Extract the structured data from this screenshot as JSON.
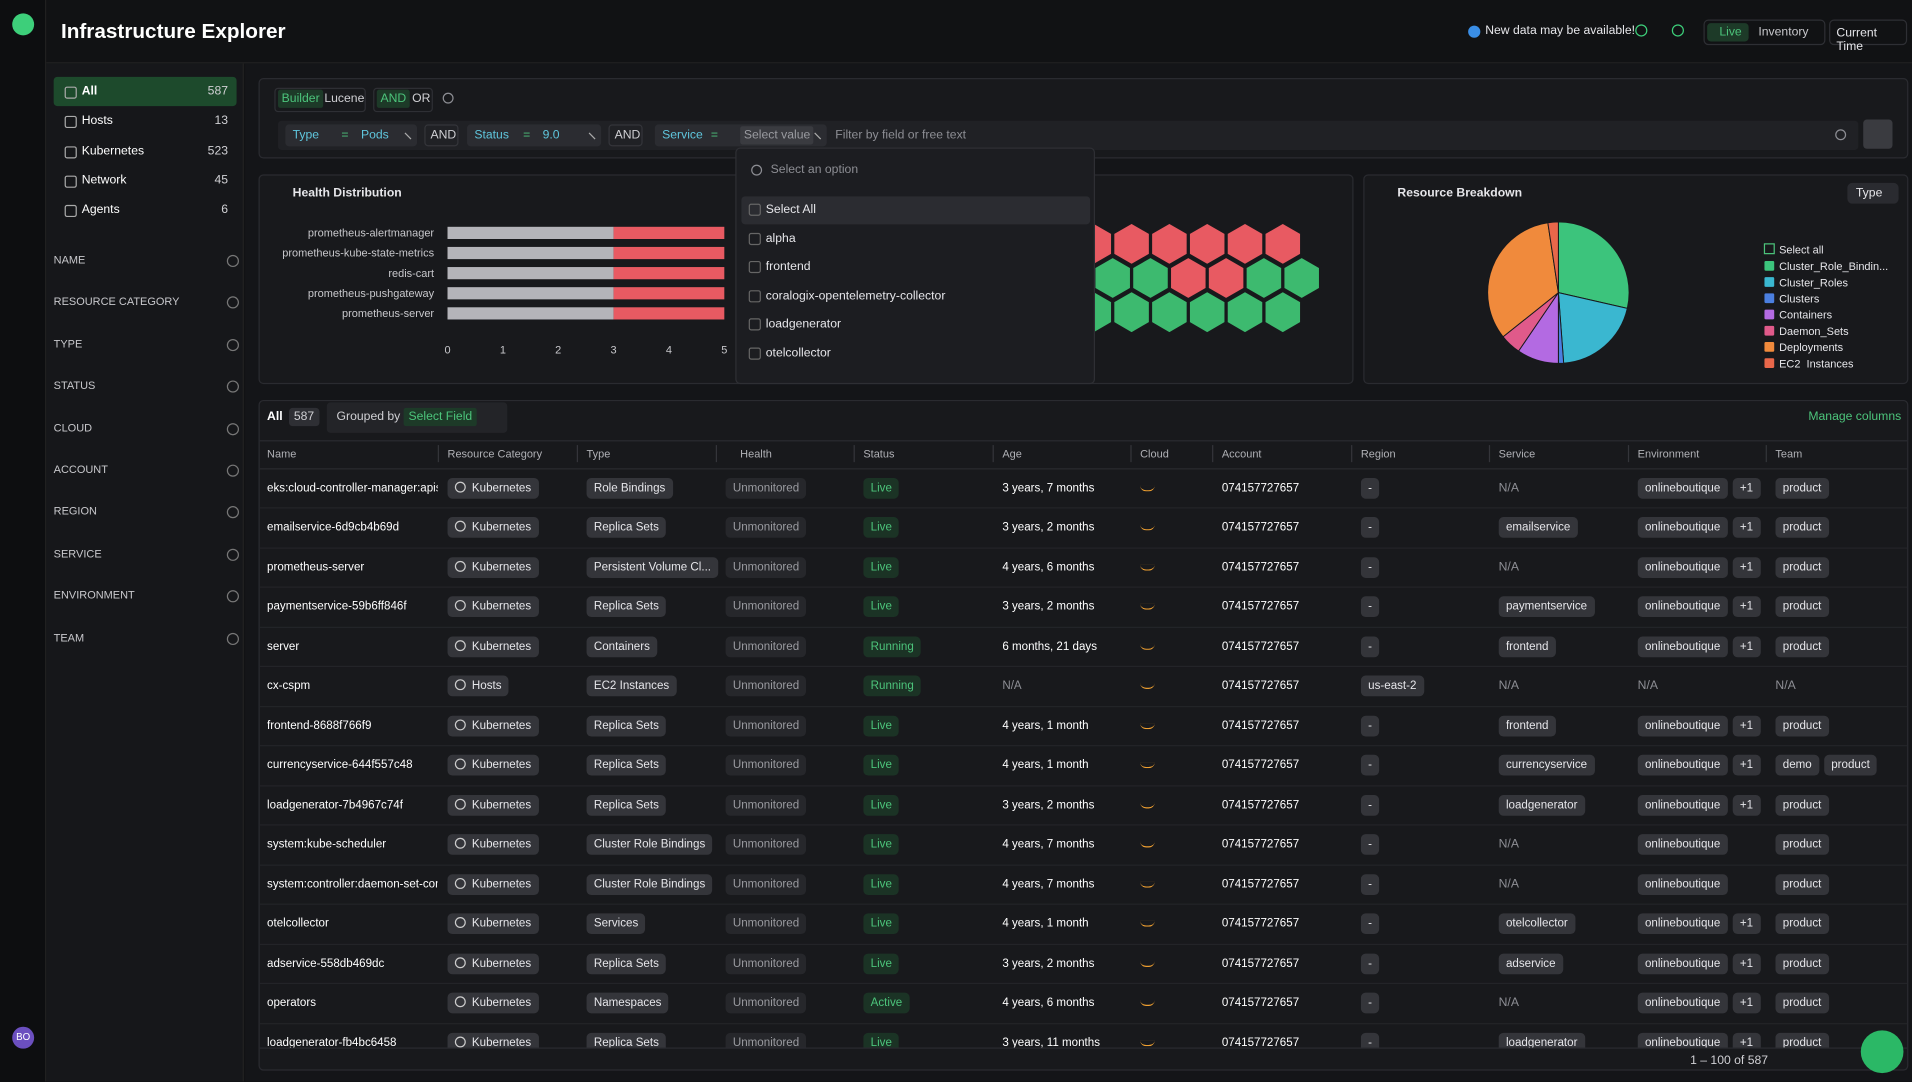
{
  "header": {
    "title": "Infrastructure Explorer",
    "notice": "New data may be available!",
    "modes": [
      "Live",
      "Inventory"
    ],
    "time": "Current Time"
  },
  "user": {
    "initials": "BO"
  },
  "sidebar": {
    "categories": [
      {
        "label": "All",
        "count": 587
      },
      {
        "label": "Hosts",
        "count": 13
      },
      {
        "label": "Kubernetes",
        "count": 523
      },
      {
        "label": "Network",
        "count": 45
      },
      {
        "label": "Agents",
        "count": 6
      }
    ],
    "filters": [
      "NAME",
      "RESOURCE CATEGORY",
      "TYPE",
      "STATUS",
      "CLOUD",
      "ACCOUNT",
      "REGION",
      "SERVICE",
      "ENVIRONMENT",
      "TEAM"
    ]
  },
  "query": {
    "syntax": [
      "Builder",
      "Lucene"
    ],
    "logic": [
      "AND",
      "OR"
    ],
    "chips": [
      {
        "field": "Type",
        "op": "=",
        "value": "Pods"
      },
      {
        "field": "Status",
        "op": "=",
        "value": "9.0"
      },
      {
        "field": "Service",
        "op": "=",
        "value": "Select value"
      }
    ],
    "joiners": [
      "AND",
      "AND"
    ],
    "placeholder": "Filter by field or free text"
  },
  "dropdown": {
    "search": "Select an option",
    "options": [
      "Select All",
      "alpha",
      "frontend",
      "coralogix-opentelemetry-collector",
      "loadgenerator",
      "otelcollector"
    ]
  },
  "chart_data": [
    {
      "type": "bar",
      "horizontal": true,
      "title": "Health Distribution",
      "categories": [
        "prometheus-alertmanager",
        "prometheus-kube-state-metrics",
        "redis-cart",
        "prometheus-pushgateway",
        "prometheus-server"
      ],
      "series": [
        {
          "color": "#b4b4b9",
          "values": [
            3,
            3,
            3,
            3,
            3
          ]
        },
        {
          "color": "#e85a62",
          "values": [
            2,
            2,
            2,
            2,
            2
          ]
        }
      ],
      "xlim": [
        0,
        5
      ],
      "xticks": [
        0,
        1,
        2,
        3,
        4,
        5
      ]
    },
    {
      "type": "honeycomb",
      "cells": [
        [
          "#e85a62",
          "#e85a62",
          "#e85a62",
          "#e85a62",
          "#e85a62",
          "#e85a62"
        ],
        [
          "#3dba6f",
          "#3dba6f",
          "#e85a62",
          "#e85a62",
          "#3dba6f",
          "#3dba6f"
        ],
        [
          "#3dba6f",
          "#3dba6f",
          "#3dba6f",
          "#3dba6f",
          "#3dba6f",
          "#3dba6f"
        ]
      ]
    },
    {
      "type": "pie",
      "title": "Resource Breakdown",
      "control": "Type",
      "legend_select": "Select all",
      "categories": [
        "Cluster_Role_Bindin...",
        "Cluster_Roles",
        "Clusters",
        "Containers",
        "Daemon_Sets",
        "Deployments",
        "EC2_Instances"
      ],
      "values": [
        24,
        17,
        1,
        8,
        4,
        28,
        2
      ],
      "colors": [
        "#3cc47c",
        "#3ab7d0",
        "#4b7fe0",
        "#b36ae2",
        "#e05a8a",
        "#f08a3c",
        "#e8674a"
      ]
    }
  ],
  "table": {
    "label": "All",
    "count": 587,
    "grouped_by": "Grouped by",
    "group_field": "Select Field",
    "manage": "Manage columns",
    "columns": [
      "Name",
      "Resource Category",
      "Type",
      "Health",
      "Status",
      "Age",
      "Cloud",
      "Account",
      "Region",
      "Service",
      "Environment",
      "Team"
    ],
    "rows": [
      {
        "name": "eks:cloud-controller-manager:apiserver",
        "category": "Kubernetes",
        "type": "Role Bindings",
        "health": "Unmonitored",
        "status": "Live",
        "age": "3 years, 7 months",
        "account": "074157727657",
        "region": "-",
        "service": "N/A",
        "environment": [
          "onlineboutique",
          "+1"
        ],
        "team": [
          "product"
        ]
      },
      {
        "name": "emailservice-6d9cb4b69d",
        "category": "Kubernetes",
        "type": "Replica Sets",
        "health": "Unmonitored",
        "status": "Live",
        "age": "3 years, 2 months",
        "account": "074157727657",
        "region": "-",
        "service": "emailservice",
        "environment": [
          "onlineboutique",
          "+1"
        ],
        "team": [
          "product"
        ]
      },
      {
        "name": "prometheus-server",
        "category": "Kubernetes",
        "type": "Persistent Volume Cl...",
        "health": "Unmonitored",
        "status": "Live",
        "age": "4 years, 6 months",
        "account": "074157727657",
        "region": "-",
        "service": "N/A",
        "environment": [
          "onlineboutique",
          "+1"
        ],
        "team": [
          "product"
        ]
      },
      {
        "name": "paymentservice-59b6ff846f",
        "category": "Kubernetes",
        "type": "Replica Sets",
        "health": "Unmonitored",
        "status": "Live",
        "age": "3 years, 2 months",
        "account": "074157727657",
        "region": "-",
        "service": "paymentservice",
        "environment": [
          "onlineboutique",
          "+1"
        ],
        "team": [
          "product"
        ]
      },
      {
        "name": "server",
        "category": "Kubernetes",
        "type": "Containers",
        "health": "Unmonitored",
        "status": "Running",
        "age": "6 months, 21 days",
        "account": "074157727657",
        "region": "-",
        "service": "frontend",
        "environment": [
          "onlineboutique",
          "+1"
        ],
        "team": [
          "product"
        ]
      },
      {
        "name": "cx-cspm",
        "category": "Hosts",
        "type": "EC2 Instances",
        "health": "Unmonitored",
        "status": "Running",
        "age": "N/A",
        "account": "074157727657",
        "region": "us-east-2",
        "service": "N/A",
        "environment": "N/A",
        "team": "N/A"
      },
      {
        "name": "frontend-8688f766f9",
        "category": "Kubernetes",
        "type": "Replica Sets",
        "health": "Unmonitored",
        "status": "Live",
        "age": "4 years, 1 month",
        "account": "074157727657",
        "region": "-",
        "service": "frontend",
        "environment": [
          "onlineboutique",
          "+1"
        ],
        "team": [
          "product"
        ]
      },
      {
        "name": "currencyservice-644f557c48",
        "category": "Kubernetes",
        "type": "Replica Sets",
        "health": "Unmonitored",
        "status": "Live",
        "age": "4 years, 1 month",
        "account": "074157727657",
        "region": "-",
        "service": "currencyservice",
        "environment": [
          "onlineboutique",
          "+1"
        ],
        "team": [
          "demo",
          "product"
        ]
      },
      {
        "name": "loadgenerator-7b4967c74f",
        "category": "Kubernetes",
        "type": "Replica Sets",
        "health": "Unmonitored",
        "status": "Live",
        "age": "3 years, 2 months",
        "account": "074157727657",
        "region": "-",
        "service": "loadgenerator",
        "environment": [
          "onlineboutique",
          "+1"
        ],
        "team": [
          "product"
        ]
      },
      {
        "name": "system:kube-scheduler",
        "category": "Kubernetes",
        "type": "Cluster Role Bindings",
        "health": "Unmonitored",
        "status": "Live",
        "age": "4 years, 7 months",
        "account": "074157727657",
        "region": "-",
        "service": "N/A",
        "environment": [
          "onlineboutique"
        ],
        "team": [
          "product"
        ]
      },
      {
        "name": "system:controller:daemon-set-controller",
        "category": "Kubernetes",
        "type": "Cluster Role Bindings",
        "health": "Unmonitored",
        "status": "Live",
        "age": "4 years, 7 months",
        "account": "074157727657",
        "region": "-",
        "service": "N/A",
        "environment": [
          "onlineboutique"
        ],
        "team": [
          "product"
        ]
      },
      {
        "name": "otelcollector",
        "category": "Kubernetes",
        "type": "Services",
        "health": "Unmonitored",
        "status": "Live",
        "age": "4 years, 1 month",
        "account": "074157727657",
        "region": "-",
        "service": "otelcollector",
        "environment": [
          "onlineboutique",
          "+1"
        ],
        "team": [
          "product"
        ]
      },
      {
        "name": "adservice-558db469dc",
        "category": "Kubernetes",
        "type": "Replica Sets",
        "health": "Unmonitored",
        "status": "Live",
        "age": "3 years, 2 months",
        "account": "074157727657",
        "region": "-",
        "service": "adservice",
        "environment": [
          "onlineboutique",
          "+1"
        ],
        "team": [
          "product"
        ]
      },
      {
        "name": "operators",
        "category": "Kubernetes",
        "type": "Namespaces",
        "health": "Unmonitored",
        "status": "Active",
        "age": "4 years, 6 months",
        "account": "074157727657",
        "region": "-",
        "service": "N/A",
        "environment": [
          "onlineboutique",
          "+1"
        ],
        "team": [
          "product"
        ]
      },
      {
        "name": "loadgenerator-fb4bc6458",
        "category": "Kubernetes",
        "type": "Replica Sets",
        "health": "Unmonitored",
        "status": "Live",
        "age": "3 years, 11 months",
        "account": "074157727657",
        "region": "-",
        "service": "loadgenerator",
        "environment": [
          "onlineboutique",
          "+1"
        ],
        "team": [
          "product"
        ]
      }
    ],
    "pagination": "1 – 100 of 587"
  }
}
